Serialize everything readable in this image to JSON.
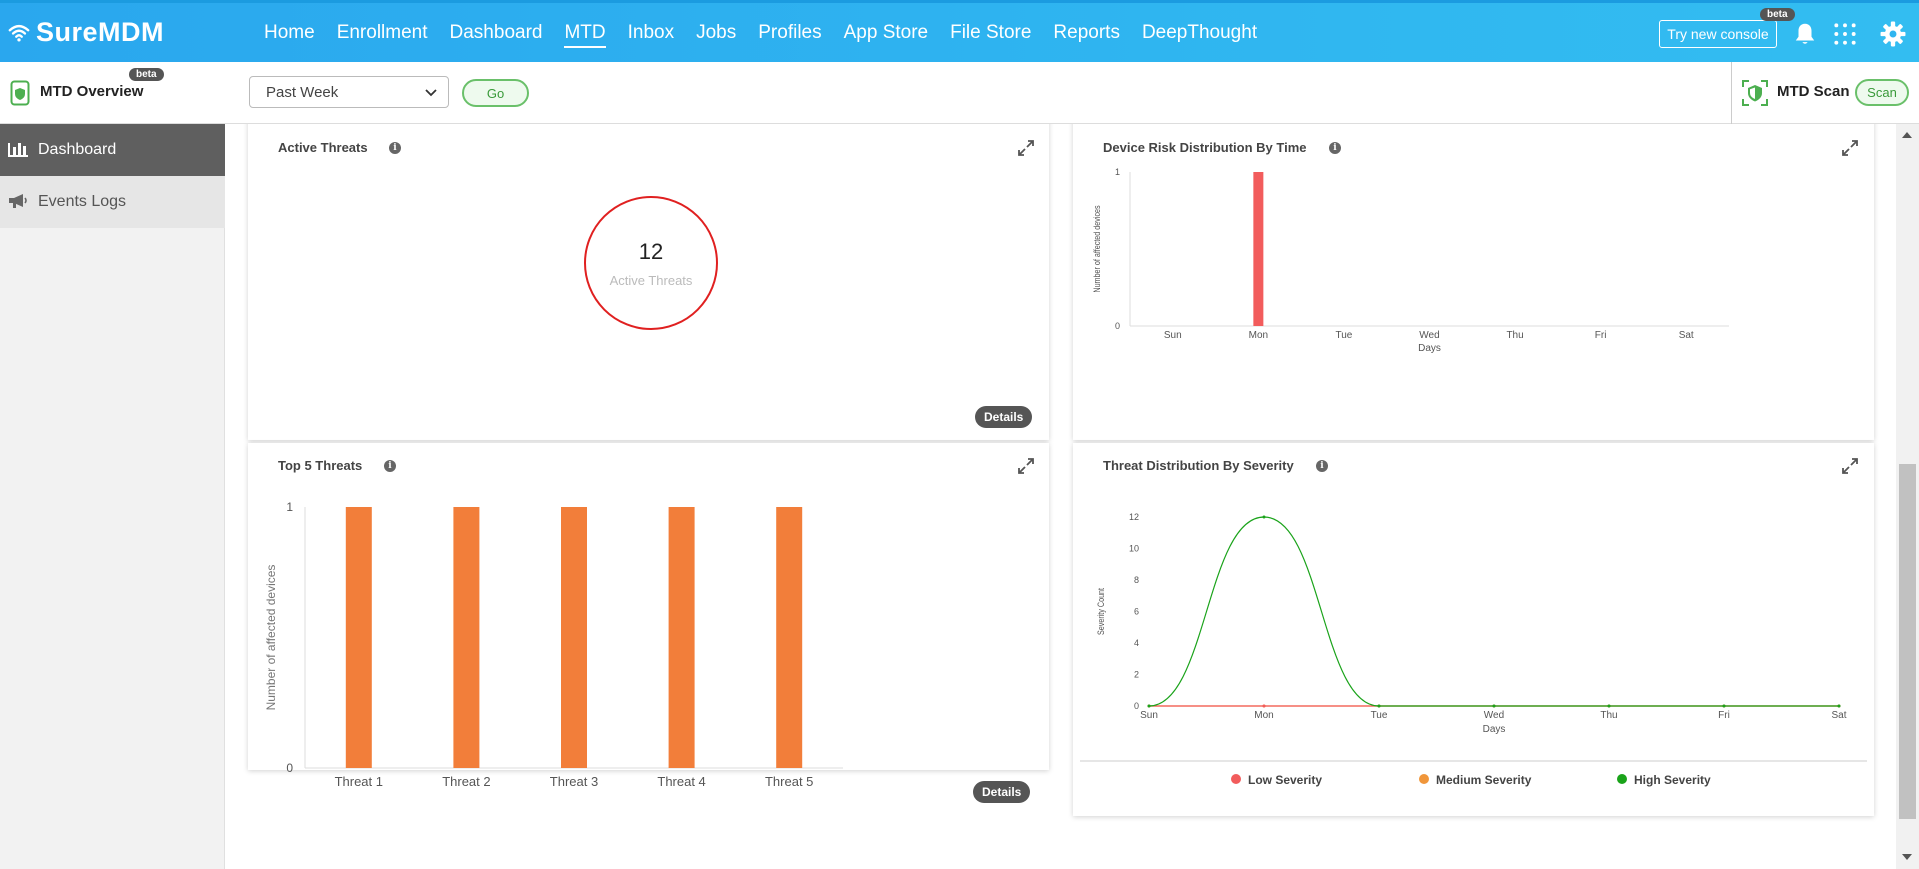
{
  "topnav": {
    "brand": "SureMDM",
    "links": [
      "Home",
      "Enrollment",
      "Dashboard",
      "MTD",
      "Inbox",
      "Jobs",
      "Profiles",
      "App Store",
      "File Store",
      "Reports",
      "DeepThought"
    ],
    "active_link": "MTD",
    "try_console_label": "Try new console",
    "beta_label": "beta"
  },
  "subheader": {
    "title": "MTD Overview",
    "beta_label": "beta",
    "period_select": "Past Week",
    "go_label": "Go",
    "scan_title": "MTD Scan",
    "scan_label": "Scan"
  },
  "sidebar": {
    "items": [
      {
        "label": "Dashboard",
        "active": true
      },
      {
        "label": "Events Logs",
        "active": false
      }
    ]
  },
  "cards": {
    "active_threats": {
      "title": "Active Threats",
      "count": "12",
      "caption": "Active Threats",
      "details_label": "Details"
    },
    "risk_by_time": {
      "title": "Device Risk Distribution By Time"
    },
    "top5": {
      "title": "Top 5 Threats",
      "details_label": "Details"
    },
    "severity": {
      "title": "Threat Distribution By Severity"
    }
  },
  "colors": {
    "nav_blue": "#2fb5f0",
    "risk_bar": "#f25c5c",
    "threat_bar": "#f27e3a",
    "low": "#f25c5c",
    "medium": "#f0963a",
    "high": "#1aa31a",
    "circle": "#e02020"
  },
  "chart_data": [
    {
      "type": "bar",
      "title": "Device Risk Distribution By Time",
      "xlabel": "Days",
      "ylabel": "Number of affected devices",
      "categories": [
        "Sun",
        "Mon",
        "Tue",
        "Wed",
        "Thu",
        "Fri",
        "Sat"
      ],
      "values": [
        0,
        1,
        0,
        0,
        0,
        0,
        0
      ],
      "ylim": [
        0,
        1
      ],
      "yticks": [
        "0",
        "1"
      ]
    },
    {
      "type": "bar",
      "title": "Top 5 Threats",
      "xlabel": "",
      "ylabel": "Number of affected devices",
      "categories": [
        "Threat 1",
        "Threat 2",
        "Threat 3",
        "Threat 4",
        "Threat 5"
      ],
      "values": [
        1,
        1,
        1,
        1,
        1
      ],
      "ylim": [
        0,
        1
      ],
      "yticks": [
        "0",
        "1"
      ]
    },
    {
      "type": "line",
      "title": "Threat Distribution By Severity",
      "xlabel": "Days",
      "ylabel": "Severity Count",
      "categories": [
        "Sun",
        "Mon",
        "Tue",
        "Wed",
        "Thu",
        "Fri",
        "Sat"
      ],
      "ylim": [
        0,
        12
      ],
      "yticks": [
        "0",
        "2",
        "4",
        "6",
        "8",
        "10",
        "12"
      ],
      "series": [
        {
          "name": "Low Severity",
          "values": [
            0,
            0,
            0,
            0,
            0,
            0,
            0
          ]
        },
        {
          "name": "Medium Severity",
          "values": [
            0,
            0,
            0,
            0,
            0,
            0,
            0
          ]
        },
        {
          "name": "High Severity",
          "values": [
            0,
            12,
            0,
            0,
            0,
            0,
            0
          ]
        }
      ],
      "legend": "bottom"
    }
  ]
}
